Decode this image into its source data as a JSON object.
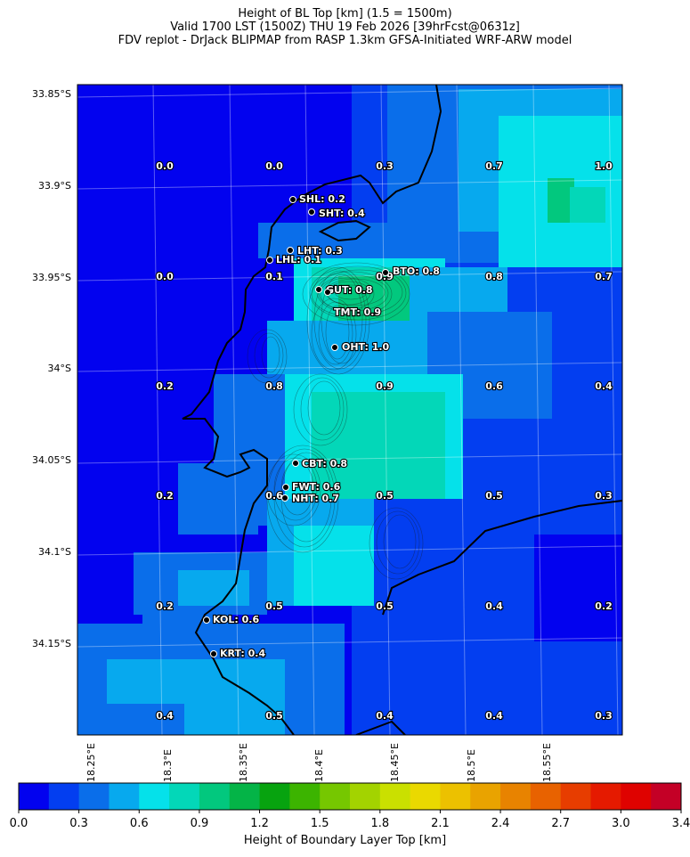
{
  "header": {
    "line1": "Height of BL Top [km] (1.5 = 1500m)",
    "line2": "Valid 1700 LST (1500Z) THU 19 Feb 2026 [39hrFcst@0631z]",
    "line3": "FDV replot - DrJack BLIPMAP from RASP 1.3km GFSA-Initiated WRF-ARW model"
  },
  "map": {
    "lat_ticks": [
      "33.85°S",
      "33.9°S",
      "33.95°S",
      "34°S",
      "34.05°S",
      "34.1°S",
      "34.15°S"
    ],
    "lon_ticks": [
      "18.25°E",
      "18.3°E",
      "18.35°E",
      "18.4°E",
      "18.45°E",
      "18.5°E",
      "18.55°E"
    ],
    "grid_values": [
      [
        "0.0",
        "0.0",
        "0.3",
        "0.7",
        "1.0"
      ],
      [
        "0.0",
        "0.1",
        "0.9",
        "0.8",
        "0.7"
      ],
      [
        "0.2",
        "0.8",
        "0.9",
        "0.6",
        "0.4"
      ],
      [
        "0.2",
        "0.6",
        "0.5",
        "0.5",
        "0.3"
      ],
      [
        "0.2",
        "0.5",
        "0.5",
        "0.4",
        "0.2"
      ],
      [
        "0.4",
        "0.5",
        "0.4",
        "0.4",
        "0.3"
      ]
    ],
    "stations": [
      {
        "label": "SHL: 0.2"
      },
      {
        "label": "SHT: 0.4"
      },
      {
        "label": "LHT: 0.3"
      },
      {
        "label": "LHL: 0.1"
      },
      {
        "label": "BTO: 0.8"
      },
      {
        "label": "GUT: 0.8"
      },
      {
        "label": "TMT: 0.9"
      },
      {
        "label": "OHT: 1.0"
      },
      {
        "label": "CBT: 0.8"
      },
      {
        "label": "FWT: 0.6"
      },
      {
        "label": "NHT: 0.7"
      },
      {
        "label": "KOL: 0.6"
      },
      {
        "label": "KRT: 0.4"
      }
    ]
  },
  "colorbar": {
    "title": "Height of Boundary Layer Top [km]",
    "tick_labels": [
      "0.0",
      "0.3",
      "0.6",
      "0.9",
      "1.2",
      "1.5",
      "1.8",
      "2.1",
      "2.4",
      "2.7",
      "3.0",
      "3.4"
    ],
    "colors": [
      "#0202ef",
      "#033ef0",
      "#0a6eea",
      "#07a9ee",
      "#05e1ea",
      "#03d7b8",
      "#02c87e",
      "#04b447",
      "#07a30f",
      "#3cb400",
      "#76c700",
      "#a3d300",
      "#cae000",
      "#ead900",
      "#ecc100",
      "#e9a300",
      "#e88300",
      "#e86200",
      "#e73d00",
      "#e51a00",
      "#df0200",
      "#c40026"
    ]
  }
}
